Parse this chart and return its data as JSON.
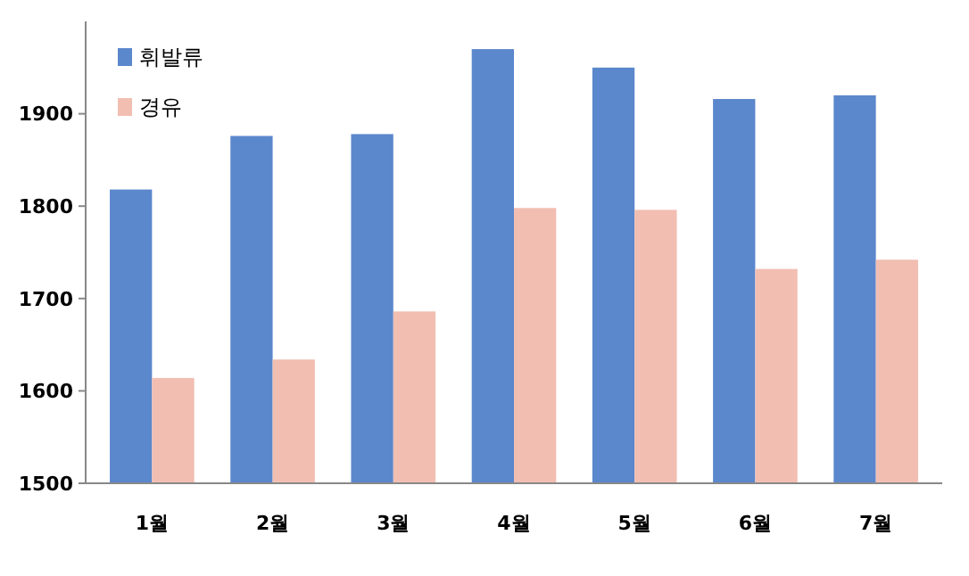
{
  "chart_data": {
    "type": "bar",
    "categories": [
      "1월",
      "2월",
      "3월",
      "4월",
      "5월",
      "6월",
      "7월"
    ],
    "series": [
      {
        "name": "휘발류",
        "color": "#5b87cc",
        "values": [
          1818,
          1876,
          1878,
          1970,
          1950,
          1916,
          1920
        ]
      },
      {
        "name": "경유",
        "color": "#f2beb2",
        "values": [
          1614,
          1634,
          1686,
          1798,
          1796,
          1732,
          1742
        ]
      }
    ],
    "ylim": [
      1500,
      2000
    ],
    "yticks": [
      1500,
      1600,
      1700,
      1800,
      1900
    ],
    "grid": false,
    "legend": "top left"
  }
}
